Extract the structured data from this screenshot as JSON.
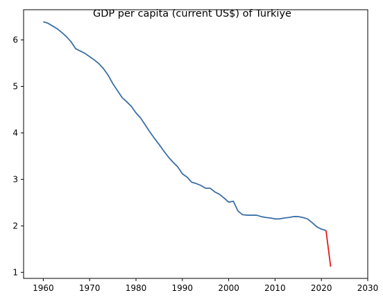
{
  "chart_data": {
    "type": "line",
    "title": "GDP per capita (current US$) of Turkiye",
    "xlabel": "",
    "ylabel": "",
    "xlim": [
      1955.75,
      2030
    ],
    "ylim": [
      0.87,
      6.65
    ],
    "x_ticks": [
      1960,
      1970,
      1980,
      1990,
      2000,
      2010,
      2020,
      2030
    ],
    "y_ticks": [
      1,
      2,
      3,
      4,
      5,
      6
    ],
    "grid": false,
    "legend": "none",
    "series": [
      {
        "color": "#3a6ea5",
        "x": [
          1960,
          1961,
          1962,
          1963,
          1964,
          1965,
          1966,
          1967,
          1968,
          1969,
          1970,
          1971,
          1972,
          1973,
          1974,
          1975,
          1976,
          1977,
          1978,
          1979,
          1980,
          1981,
          1982,
          1983,
          1984,
          1985,
          1986,
          1987,
          1988,
          1989,
          1990,
          1991,
          1992,
          1993,
          1994,
          1995,
          1996,
          1997,
          1998,
          1999,
          2000,
          2001,
          2002,
          2003,
          2004,
          2005,
          2006,
          2007,
          2008,
          2009,
          2010,
          2011,
          2012,
          2013,
          2014,
          2015,
          2016,
          2017,
          2018,
          2019,
          2020,
          2021
        ],
        "values": [
          6.39,
          6.36,
          6.3,
          6.24,
          6.16,
          6.07,
          5.96,
          5.81,
          5.76,
          5.71,
          5.64,
          5.57,
          5.49,
          5.38,
          5.24,
          5.06,
          4.91,
          4.76,
          4.67,
          4.57,
          4.43,
          4.32,
          4.17,
          4.02,
          3.88,
          3.75,
          3.61,
          3.48,
          3.37,
          3.27,
          3.12,
          3.05,
          2.94,
          2.91,
          2.87,
          2.81,
          2.81,
          2.73,
          2.68,
          2.6,
          2.51,
          2.53,
          2.32,
          2.24,
          2.23,
          2.23,
          2.23,
          2.2,
          2.18,
          2.17,
          2.15,
          2.15,
          2.17,
          2.18,
          2.2,
          2.2,
          2.18,
          2.15,
          2.07,
          1.98,
          1.93,
          1.9
        ]
      },
      {
        "color": "#e31a1c",
        "x": [
          2021,
          2022
        ],
        "values": [
          1.9,
          1.12
        ]
      }
    ]
  }
}
